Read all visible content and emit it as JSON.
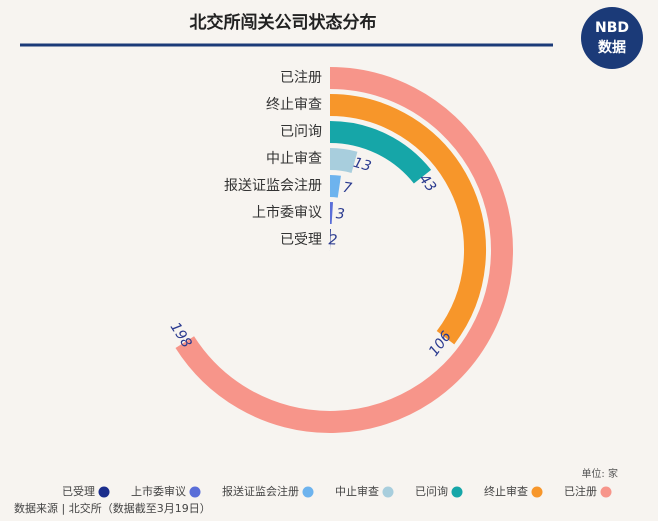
{
  "chart_data": {
    "type": "radial_bar",
    "title": "北交所闯关公司状态分布",
    "brand": "NBD",
    "brand_sub": "数据",
    "categories": [
      "已注册",
      "终止审查",
      "已问询",
      "中止审查",
      "报送证监会注册",
      "上市委审议",
      "已受理"
    ],
    "values": [
      198,
      106,
      43,
      13,
      7,
      3,
      2
    ],
    "colors": [
      "#f7958a",
      "#f7962a",
      "#16a6a8",
      "#a8cedd",
      "#6db3ee",
      "#5a6ed8",
      "#1b2e8c"
    ],
    "xlim": [
      0,
      300
    ],
    "unit": "单位: 家",
    "source": "数据来源 | 北交所（数据截至3月19日）"
  }
}
